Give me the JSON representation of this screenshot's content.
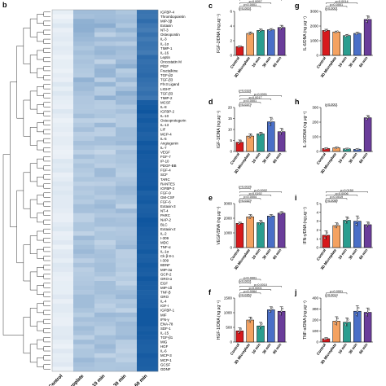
{
  "chart_data": [
    {
      "panel": "b",
      "type": "heatmap",
      "columns": [
        "Control",
        "3D Microplate",
        "10 min",
        "30 min",
        "60 min"
      ],
      "rows": [
        "IGFBP-4",
        "Thrombopoietin",
        "MIP-3β",
        "Eotaxin",
        "NT-3",
        "Osteopontin",
        "IL-3",
        "IL-1α",
        "TIMP-1",
        "IL-16",
        "Leptin",
        "Oncostatin M",
        "PlGF",
        "Fractalkine",
        "TGF-β2",
        "TGF-β3",
        "Flt-3 Ligand",
        "LIGHT",
        "TGF-β3",
        "TIMP-2",
        "MCSF",
        "IL-8",
        "IGFBP-2",
        "IL-10",
        "Osteoprotegerin",
        "IL-13",
        "LIF",
        "MCP-4",
        "IL-5",
        "Angiogenin",
        "IL-7",
        "VEGF",
        "FGF-7",
        "IP-10",
        "PDGF-BB",
        "FGF-4",
        "SCF",
        "TARC",
        "RANTES",
        "IGFBP-3",
        "FGF-9",
        "GM-CSF",
        "FGF-6",
        "Eotaxin-3",
        "NT-4",
        "PARC",
        "NAP-2",
        "BLC",
        "Eotaxin-2",
        "IL-2",
        "I-309",
        "MDC",
        "TNF-α",
        "IL-1α",
        "Ck β 8-1",
        "I-309",
        "BDNF",
        "MIP-3α",
        "GCP-2",
        "GRO-α",
        "EGF",
        "MIP-1δ",
        "TNF-β",
        "GRO",
        "IL-4",
        "IGF-I",
        "IGFBP-1",
        "MIF",
        "IFN-γ",
        "ENA-78",
        "SDF-1",
        "IL-15",
        "TGF-β1",
        "MIG",
        "HGF",
        "IL-6",
        "MCP-3",
        "MCP-1",
        "GCSF",
        "GDNF"
      ],
      "values": [
        [
          0.1,
          0.38,
          0.38,
          0.33,
          0.8
        ],
        [
          0.07,
          0.36,
          0.38,
          0.36,
          0.79
        ],
        [
          0.1,
          0.45,
          0.4,
          0.38,
          0.84
        ],
        [
          0.14,
          0.46,
          0.47,
          0.33,
          0.78
        ],
        [
          0.09,
          0.46,
          0.36,
          0.42,
          0.75
        ],
        [
          0.11,
          0.42,
          0.27,
          0.33,
          0.81
        ],
        [
          0.12,
          0.4,
          0.39,
          0.39,
          0.76
        ],
        [
          0.1,
          0.37,
          0.32,
          0.3,
          0.8
        ],
        [
          0.12,
          0.33,
          0.4,
          0.39,
          0.79
        ],
        [
          0.11,
          0.37,
          0.42,
          0.37,
          0.76
        ],
        [
          0.08,
          0.33,
          0.36,
          0.35,
          0.85
        ],
        [
          0.1,
          0.35,
          0.26,
          0.4,
          0.82
        ],
        [
          0.1,
          0.33,
          0.39,
          0.46,
          0.84
        ],
        [
          0.08,
          0.31,
          0.43,
          0.29,
          0.84
        ],
        [
          0.11,
          0.3,
          0.42,
          0.33,
          0.86
        ],
        [
          0.09,
          0.44,
          0.28,
          0.4,
          0.83
        ],
        [
          0.14,
          0.38,
          0.42,
          0.3,
          0.81
        ],
        [
          0.1,
          0.39,
          0.29,
          0.36,
          0.79
        ],
        [
          0.14,
          0.35,
          0.3,
          0.46,
          0.82
        ],
        [
          0.11,
          0.32,
          0.44,
          0.39,
          0.78
        ],
        [
          0.1,
          0.32,
          0.3,
          0.4,
          0.93
        ],
        [
          0.09,
          0.31,
          0.29,
          0.31,
          0.95
        ],
        [
          0.14,
          0.31,
          0.32,
          0.36,
          0.97
        ],
        [
          0.11,
          0.37,
          0.33,
          0.3,
          0.92
        ],
        [
          0.08,
          0.27,
          0.26,
          0.3,
          0.95
        ],
        [
          0.1,
          0.31,
          0.4,
          0.3,
          0.92
        ],
        [
          0.11,
          0.36,
          0.28,
          0.38,
          0.93
        ],
        [
          0.09,
          0.28,
          0.27,
          0.38,
          0.9
        ],
        [
          0.11,
          0.3,
          0.37,
          0.37,
          0.91
        ],
        [
          0.11,
          0.36,
          0.36,
          0.4,
          0.96
        ],
        [
          0.09,
          0.32,
          0.29,
          0.3,
          0.93
        ],
        [
          0.08,
          0.27,
          0.24,
          0.36,
          0.96
        ],
        [
          0.09,
          0.36,
          0.31,
          0.33,
          0.94
        ],
        [
          0.14,
          0.29,
          0.31,
          0.34,
          0.94
        ],
        [
          0.12,
          0.34,
          0.28,
          0.31,
          0.94
        ],
        [
          0.14,
          0.31,
          0.39,
          0.29,
          0.95
        ],
        [
          0.09,
          0.29,
          0.39,
          0.27,
          0.94
        ],
        [
          0.11,
          0.33,
          0.32,
          0.32,
          0.94
        ],
        [
          0.14,
          0.27,
          0.28,
          0.34,
          0.94
        ],
        [
          0.12,
          0.32,
          0.34,
          0.4,
          0.96
        ],
        [
          0.14,
          0.3,
          0.35,
          0.39,
          0.91
        ],
        [
          0.12,
          0.33,
          0.3,
          0.34,
          0.93
        ],
        [
          0.12,
          0.3,
          0.37,
          0.33,
          0.95
        ],
        [
          0.12,
          0.37,
          0.4,
          0.26,
          0.91
        ],
        [
          0.11,
          0.36,
          0.35,
          0.4,
          0.92
        ],
        [
          0.09,
          0.27,
          0.32,
          0.32,
          0.93
        ],
        [
          0.09,
          0.27,
          0.37,
          0.35,
          0.97
        ],
        [
          0.12,
          0.33,
          0.36,
          0.36,
          0.96
        ],
        [
          0.14,
          0.33,
          0.29,
          0.31,
          0.94
        ],
        [
          0.09,
          0.26,
          0.33,
          0.32,
          0.94
        ],
        [
          0.1,
          0.39,
          0.33,
          0.34,
          0.93
        ],
        [
          0.13,
          0.33,
          0.26,
          0.36,
          0.93
        ],
        [
          0.08,
          0.37,
          0.3,
          0.4,
          0.92
        ],
        [
          0.12,
          0.4,
          0.35,
          0.28,
          0.95
        ],
        [
          0.13,
          0.35,
          0.36,
          0.28,
          0.91
        ],
        [
          0.1,
          0.28,
          0.34,
          0.3,
          0.92
        ],
        [
          0.14,
          0.35,
          0.37,
          0.29,
          0.95
        ],
        [
          0.13,
          0.28,
          0.37,
          0.31,
          0.93
        ],
        [
          0.1,
          0.3,
          0.34,
          0.27,
          0.92
        ],
        [
          0.09,
          0.31,
          0.28,
          0.3,
          0.96
        ],
        [
          0.1,
          0.32,
          0.37,
          0.26,
          0.93
        ],
        [
          0.1,
          0.34,
          0.37,
          0.33,
          0.93
        ],
        [
          0.1,
          0.32,
          0.37,
          0.37,
          0.91
        ],
        [
          0.13,
          0.38,
          0.33,
          0.4,
          0.92
        ],
        [
          0.09,
          0.38,
          0.31,
          0.31,
          0.93
        ],
        [
          0.12,
          0.38,
          0.27,
          0.34,
          0.93
        ],
        [
          0.12,
          0.34,
          0.3,
          0.26,
          0.96
        ],
        [
          0.1,
          0.29,
          0.4,
          0.39,
          0.96
        ],
        [
          0.09,
          0.36,
          0.36,
          0.33,
          0.96
        ],
        [
          0.09,
          0.32,
          0.34,
          0.39,
          0.96
        ],
        [
          0.12,
          0.38,
          0.3,
          0.37,
          0.93
        ],
        [
          0.12,
          0.35,
          0.29,
          0.37,
          0.95
        ],
        [
          0.13,
          0.27,
          0.37,
          0.4,
          0.94
        ],
        [
          0.1,
          0.38,
          0.35,
          0.29,
          0.92
        ],
        [
          0.08,
          0.3,
          0.4,
          0.28,
          0.91
        ],
        [
          0.13,
          0.33,
          0.36,
          0.26,
          0.91
        ],
        [
          0.1,
          0.33,
          0.26,
          0.3,
          0.94
        ],
        [
          0.11,
          0.4,
          0.35,
          0.27,
          0.92
        ],
        [
          0.13,
          0.36,
          0.33,
          0.33,
          0.92
        ],
        [
          0.08,
          0.34,
          0.33,
          0.34,
          0.91
        ]
      ],
      "colormap": [
        "#ffffff",
        "#08519c"
      ]
    },
    {
      "panel": "c",
      "type": "bar",
      "ylabel": "FGF-2/DNA (ng μg⁻¹)",
      "ylim": [
        0,
        6
      ],
      "yticks": [
        0,
        2,
        4,
        6
      ],
      "categories": [
        "Control",
        "3D Microplate",
        "10 min",
        "30 min",
        "60 min"
      ],
      "values": [
        1.2,
        3.0,
        3.4,
        3.5,
        3.8
      ],
      "errors": [
        0.1,
        0.2,
        0.2,
        0.15,
        0.3
      ],
      "pvalues": [
        "p=0.0001",
        "p<0.0001",
        "p=0.0057",
        "p<0.0001",
        "p=0.0771",
        "p=0.0148"
      ]
    },
    {
      "panel": "d",
      "type": "bar",
      "ylabel": "IGF-1/DNA (ng μg⁻¹)",
      "ylim": [
        0,
        20
      ],
      "yticks": [
        0,
        5,
        10,
        15,
        20
      ],
      "categories": [
        "Control",
        "3D Microplate",
        "10 min",
        "30 min",
        "60 min"
      ],
      "values": [
        4.2,
        7.0,
        8.0,
        13.5,
        9.0
      ],
      "errors": [
        1.0,
        1.0,
        0.8,
        2.0,
        1.5
      ],
      "pvalues": [
        "p=0.0379",
        "p=0.0001",
        "p=0.0017",
        "p=0.0001",
        "p=0.0331"
      ]
    },
    {
      "panel": "e",
      "type": "bar",
      "ylabel": "VEGF/DNA (ng μg⁻¹)",
      "ylim": [
        0,
        3000
      ],
      "yticks": [
        0,
        1000,
        2000,
        3000
      ],
      "categories": [
        "Control",
        "3D Microplate",
        "10 min",
        "30 min",
        "60 min"
      ],
      "values": [
        1650,
        2100,
        1700,
        2150,
        2350
      ],
      "errors": [
        80,
        150,
        150,
        100,
        100
      ],
      "pvalues": [
        "p=0.0329",
        "p=0.0004",
        "p=0.0192",
        "p=0.0002",
        "p=0.0026"
      ]
    },
    {
      "panel": "f",
      "type": "bar",
      "ylabel": "HGF-1/DNA (ng μg⁻¹)",
      "ylim": [
        0,
        1500
      ],
      "yticks": [
        0,
        500,
        1000,
        1500
      ],
      "categories": [
        "Control",
        "3D Microplate",
        "10 min",
        "30 min",
        "60 min"
      ],
      "values": [
        380,
        750,
        550,
        1100,
        1050
      ],
      "errors": [
        100,
        100,
        120,
        100,
        150
      ],
      "pvalues": [
        "p=0.0353",
        "p=0.0064",
        "p=0.0001",
        "p=0.0010",
        "p<0.0001",
        "p<0.0001"
      ]
    },
    {
      "panel": "g",
      "type": "bar",
      "ylabel": "IL-6/DNA (ng μg⁻¹)",
      "ylim": [
        0,
        3000
      ],
      "yticks": [
        0,
        1000,
        2000,
        3000
      ],
      "categories": [
        "Control",
        "3D Microplate",
        "10 min",
        "30 min",
        "60 min"
      ],
      "values": [
        1700,
        1600,
        1350,
        1500,
        2450
      ],
      "errors": [
        80,
        60,
        80,
        80,
        250
      ],
      "pvalues": [
        "p<0.0001",
        "p=0.0001",
        "p=0.0014"
      ]
    },
    {
      "panel": "h",
      "type": "bar",
      "ylabel": "IL-10/DNA (ng μg⁻¹)",
      "ylim": [
        0,
        300
      ],
      "yticks": [
        0,
        100,
        200,
        300
      ],
      "categories": [
        "Control",
        "3D Microplate",
        "10 min",
        "30 min",
        "60 min"
      ],
      "values": [
        20,
        25,
        18,
        15,
        230
      ],
      "errors": [
        5,
        6,
        4,
        4,
        15
      ],
      "pvalues": [
        "p<0.0001"
      ]
    },
    {
      "panel": "i",
      "type": "bar",
      "ylabel": "IFN-γ/DNA (ng μg⁻¹)",
      "ylim": [
        0,
        5
      ],
      "yticks": [
        0,
        1,
        2,
        3,
        4,
        5
      ],
      "categories": [
        "Control",
        "3D Microplate",
        "10 min",
        "30 min",
        "60 min"
      ],
      "values": [
        1.4,
        2.5,
        3.1,
        3.0,
        2.6
      ],
      "errors": [
        0.5,
        0.3,
        0.4,
        0.6,
        0.3
      ],
      "pvalues": [
        "p=0.0086",
        "p=0.0019",
        "p=0.0006",
        "p=0.0150"
      ]
    },
    {
      "panel": "j",
      "type": "bar",
      "ylabel": "TNF-α/DNA (ng μg⁻¹)",
      "ylim": [
        0,
        400
      ],
      "yticks": [
        0,
        100,
        200,
        300,
        400
      ],
      "categories": [
        "Control",
        "3D Microplate",
        "10 min",
        "30 min",
        "60 min"
      ],
      "values": [
        30,
        190,
        180,
        280,
        270
      ],
      "errors": [
        10,
        40,
        40,
        50,
        40
      ],
      "pvalues": [
        "p=0.0014",
        "p=0.0001"
      ]
    }
  ],
  "colors": {
    "bars": [
      "#d7191c",
      "#f4a261",
      "#2a9d8f",
      "#4a6fc7",
      "#6a3d9a"
    ],
    "heat_low": "#ffffff",
    "heat_high": "#08519c"
  }
}
